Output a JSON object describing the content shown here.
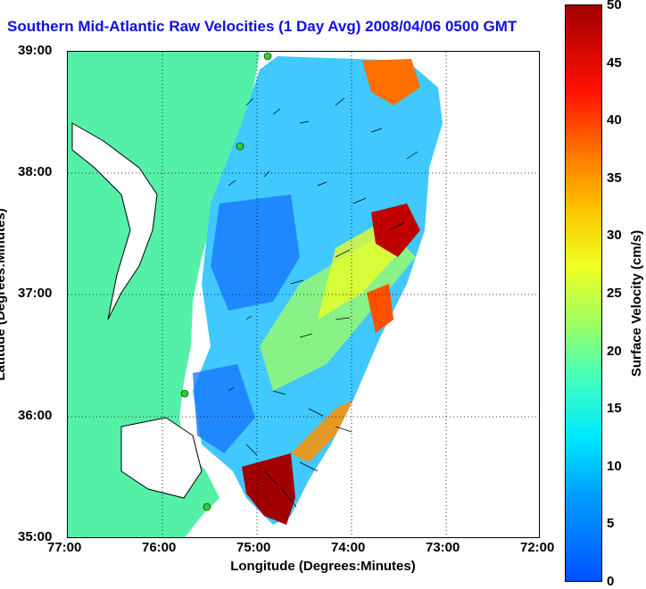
{
  "title": "Southern Mid-Atlantic Raw Velocities (1 Day Avg) 2008/04/06 0500 GMT",
  "axes": {
    "xlabel": "Longitude (Degrees:Minutes)",
    "ylabel": "Latitude (Degrees:Minutes)",
    "xticks": [
      "77:00",
      "76:00",
      "75:00",
      "74:00",
      "73:00",
      "72:00"
    ],
    "yticks": [
      "39:00",
      "38:00",
      "37:00",
      "36:00",
      "35:00"
    ]
  },
  "colorbar": {
    "label": "Surface Velocity (cm/s)",
    "ticks": [
      "50",
      "45",
      "40",
      "35",
      "30",
      "25",
      "20",
      "15",
      "10",
      "5",
      "0"
    ],
    "range": [
      0,
      50
    ],
    "colors": {
      "low": "#0050ff",
      "mid": "#40ffc0",
      "high": "#a00000"
    }
  },
  "map": {
    "land_color": "#55f0a8",
    "water_color": "#ffffff",
    "gridlines": "dotted"
  },
  "chart_data": {
    "type": "heatmap",
    "title": "Southern Mid-Atlantic Raw Velocities (1 Day Avg) 2008/04/06 0500 GMT",
    "xlabel": "Longitude (Degrees:Minutes)",
    "ylabel": "Latitude (Degrees:Minutes)",
    "xlim": [
      -77,
      -72
    ],
    "ylim": [
      35,
      39
    ],
    "colorbar_range": [
      0,
      50
    ],
    "high_speed_regions": [
      {
        "lon": -73.7,
        "lat": 37.5,
        "speed": 45
      },
      {
        "lon": -74.8,
        "lat": 35.3,
        "speed": 50
      },
      {
        "lon": -73.8,
        "lat": 38.8,
        "speed": 35
      },
      {
        "lon": -73.9,
        "lat": 36.9,
        "speed": 35
      }
    ],
    "low_speed_regions": [
      {
        "lon": -75.0,
        "lat": 37.6,
        "speed": 5
      },
      {
        "lon": -75.7,
        "lat": 36.2,
        "speed": 5
      },
      {
        "lon": -74.3,
        "lat": 38.3,
        "speed": 10
      }
    ]
  }
}
